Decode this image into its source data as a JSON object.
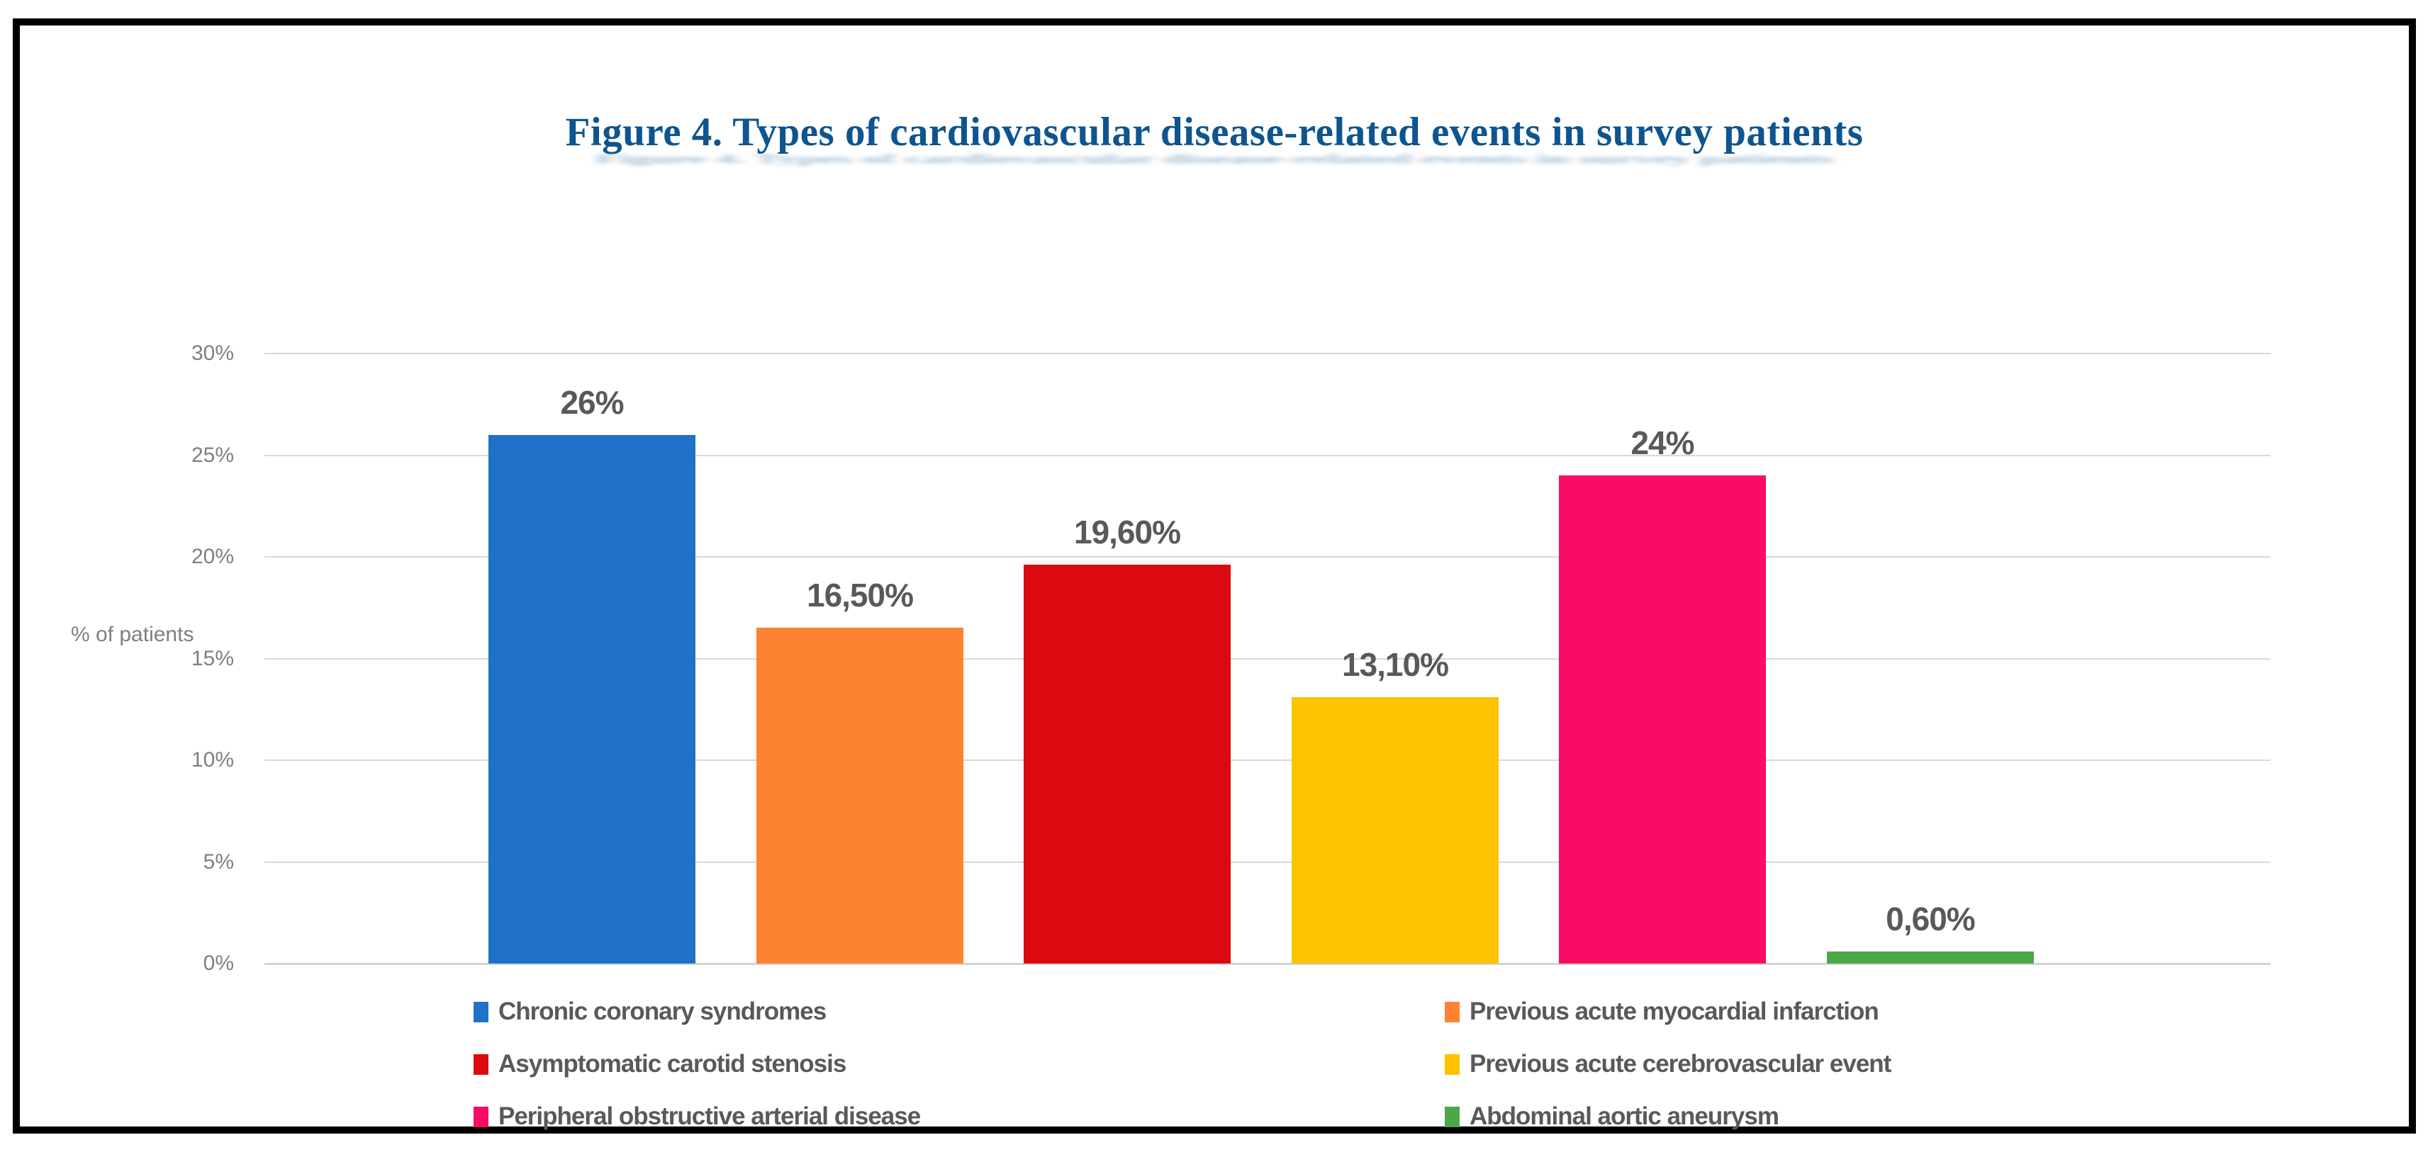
{
  "figure": {
    "title": "Figure 4. Types of cardiovascular disease-related events in survey patients"
  },
  "chart_data": {
    "type": "bar",
    "title": "Figure 4. Types of cardiovascular disease-related events in survey patients",
    "xlabel": "",
    "ylabel": "% of patients",
    "ylim": [
      0,
      30
    ],
    "grid": true,
    "legend_position": "bottom-two-columns",
    "decimal_separator": ",",
    "yticks": [
      {
        "value": 30,
        "label": "30%"
      },
      {
        "value": 25,
        "label": "25%"
      },
      {
        "value": 20,
        "label": "20%"
      },
      {
        "value": 15,
        "label": "15%"
      },
      {
        "value": 10,
        "label": "10%"
      },
      {
        "value": 5,
        "label": "5%"
      },
      {
        "value": 0,
        "label": "0%"
      }
    ],
    "categories": [
      "Chronic coronary syndromes",
      "Previous acute myocardial infarction",
      "Asymptomatic carotid stenosis",
      "Previous acute cerebrovascular event",
      "Peripheral obstructive arterial disease",
      "Abdominal aortic aneurysm"
    ],
    "values": [
      26,
      16.5,
      19.6,
      13.1,
      24,
      0.6
    ],
    "bar_labels": [
      "26%",
      "16,50%",
      "19,60%",
      "13,10%",
      "24%",
      "0,60%"
    ],
    "bar_colors": [
      "#1f72c8",
      "#fb8331",
      "#db0a10",
      "#fec200",
      "#fa0b64",
      "#4ca748"
    ],
    "legend": [
      {
        "label": "Chronic coronary syndromes",
        "color": "#1f72c8"
      },
      {
        "label": "Previous acute myocardial infarction",
        "color": "#fb8331"
      },
      {
        "label": "Asymptomatic carotid stenosis",
        "color": "#db0a10"
      },
      {
        "label": "Previous acute cerebrovascular event",
        "color": "#fec200"
      },
      {
        "label": "Peripheral obstructive arterial disease",
        "color": "#fa0b64"
      },
      {
        "label": "Abdominal aortic aneurysm",
        "color": "#4ca748"
      }
    ]
  },
  "colors": {
    "title_text": "#0e5590",
    "value_label_text": "#595959",
    "tick_label_text": "#7f7f7f",
    "legend_text": "#595959",
    "gridline": "#d9d9d9",
    "frame_border": "#000000",
    "background": "#ffffff"
  }
}
